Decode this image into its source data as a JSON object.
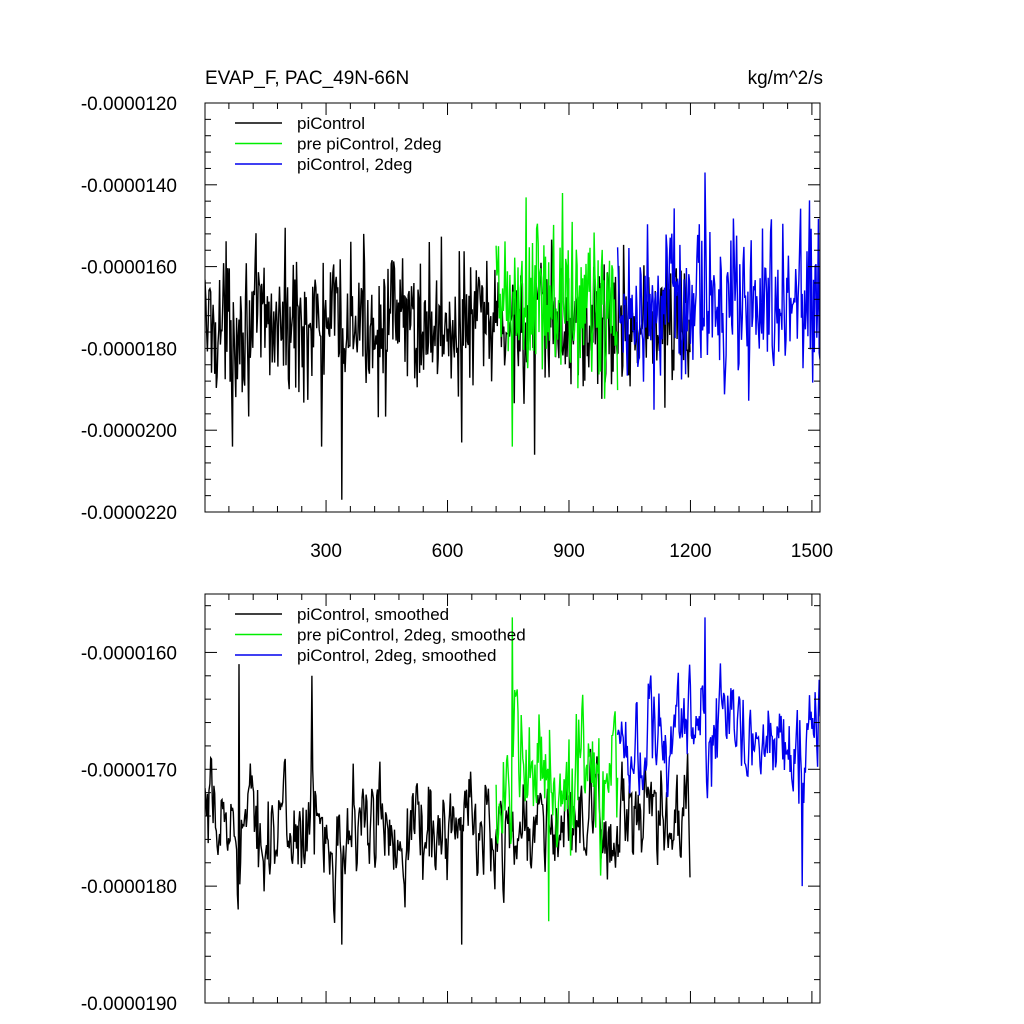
{
  "chart_data": [
    {
      "type": "line",
      "title": "EVAP_F, PAC_49N-66N",
      "units": "kg/m^2/s",
      "xlim": [
        1,
        1520
      ],
      "ylim": [
        -2.2e-05,
        -1.2e-05
      ],
      "x_ticks": [
        300,
        600,
        900,
        1200,
        1500
      ],
      "x_tick_labels": [
        "300",
        "600",
        "900",
        "1200",
        "1500"
      ],
      "y_ticks": [
        -1.2e-05,
        -1.4e-05,
        -1.6e-05,
        -1.8e-05,
        -2e-05,
        -2.2e-05
      ],
      "y_tick_labels": [
        "-0.0000120",
        "-0.0000140",
        "-0.0000160",
        "-0.0000180",
        "-0.0000200",
        "-0.0000220"
      ],
      "legend_position": "top-left",
      "colors": {
        "piControl": "#000000",
        "pre": "#00ee00",
        "twodeg": "#0000ee"
      },
      "series": [
        {
          "name": "piControl",
          "color": "#000000",
          "x_range": [
            1,
            1200
          ],
          "mean": -1.74e-05,
          "spread": 1e-06,
          "extremes": [
            {
              "x": 70,
              "y": -2.04e-05
            },
            {
              "x": 290,
              "y": -2.04e-05
            },
            {
              "x": 340,
              "y": -2.17e-05
            },
            {
              "x": 635,
              "y": -2.03e-05
            },
            {
              "x": 815,
              "y": -2.06e-05
            }
          ]
        },
        {
          "name": "pre piControl, 2deg",
          "color": "#00ee00",
          "x_range": [
            720,
            1020
          ],
          "mean": -1.7e-05,
          "spread": 1.3e-06,
          "extremes": [
            {
              "x": 760,
              "y": -2.04e-05
            },
            {
              "x": 885,
              "y": -1.42e-05
            }
          ]
        },
        {
          "name": "piControl, 2deg",
          "color": "#0000ee",
          "x_range": [
            1020,
            1520
          ],
          "mean": -1.69e-05,
          "spread": 1.1e-06,
          "extremes": [
            {
              "x": 1237,
              "y": -1.37e-05
            },
            {
              "x": 1110,
              "y": -1.95e-05
            }
          ]
        }
      ]
    },
    {
      "type": "line",
      "title": "",
      "xlim": [
        1,
        1520
      ],
      "ylim": [
        -1.9e-05,
        -1.55e-05
      ],
      "y_ticks": [
        -1.6e-05,
        -1.7e-05,
        -1.8e-05,
        -1.9e-05
      ],
      "y_tick_labels": [
        "-0.0000160",
        "-0.0000170",
        "-0.0000180",
        "-0.0000190"
      ],
      "legend_position": "top-left",
      "series": [
        {
          "name": "piControl, smoothed",
          "color": "#000000",
          "x_range": [
            1,
            1200
          ],
          "mean": -1.75e-05,
          "spread": 3e-07,
          "extremes": [
            {
              "x": 85,
              "y": -1.61e-05
            },
            {
              "x": 265,
              "y": -1.62e-05
            },
            {
              "x": 340,
              "y": -1.85e-05
            },
            {
              "x": 635,
              "y": -1.85e-05
            }
          ]
        },
        {
          "name": "pre piControl, 2deg, smoothed",
          "color": "#00ee00",
          "x_range": [
            720,
            1020
          ],
          "mean": -1.71e-05,
          "spread": 4e-07,
          "extremes": [
            {
              "x": 760,
              "y": -1.57e-05
            },
            {
              "x": 850,
              "y": -1.83e-05
            }
          ]
        },
        {
          "name": "piControl, 2deg, smoothed",
          "color": "#0000ee",
          "x_range": [
            1020,
            1520
          ],
          "mean": -1.67e-05,
          "spread": 3e-07,
          "extremes": [
            {
              "x": 1237,
              "y": -1.57e-05
            },
            {
              "x": 1477,
              "y": -1.8e-05
            }
          ]
        }
      ]
    }
  ]
}
